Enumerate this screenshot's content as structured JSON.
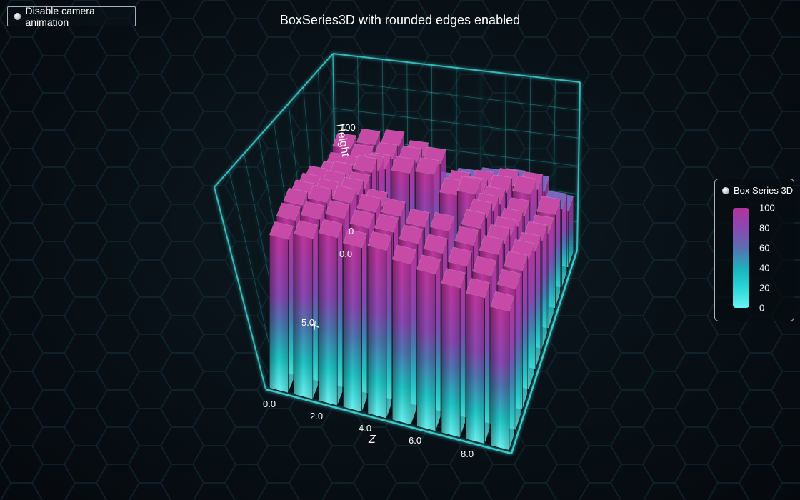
{
  "toggle": {
    "label": "Disable camera animation"
  },
  "title": "BoxSeries3D with rounded edges enabled",
  "legend": {
    "title": "Box Series 3D",
    "ticks": [
      "100",
      "80",
      "60",
      "40",
      "20",
      "0"
    ]
  },
  "axes": {
    "height_label": "Height",
    "height_ticks": [
      "100",
      "0"
    ],
    "x_label": "X",
    "x_ticks": [
      "0.0",
      "5.0"
    ],
    "z_label": "Z",
    "z_ticks": [
      "0.0",
      "2.0",
      "4.0",
      "6.0",
      "8.0"
    ]
  },
  "colors": {
    "low": "#5ef2f2",
    "mid": "#5a6fb0",
    "high": "#b2339a",
    "frame": "#3fd6d6"
  },
  "chart_data": {
    "type": "bar3d",
    "title": "BoxSeries3D with rounded edges enabled",
    "series": [
      {
        "name": "Box Series 3D"
      }
    ],
    "xlabel": "X",
    "ylabel": "Height",
    "zlabel": "Z",
    "ylim": [
      0,
      100
    ],
    "grid": true,
    "legend_position": "right",
    "values": [
      [
        70,
        76,
        78,
        72,
        50,
        55,
        58,
        60,
        58,
        45
      ],
      [
        65,
        74,
        78,
        78,
        80,
        65,
        68,
        72,
        72,
        60
      ],
      [
        68,
        75,
        80,
        80,
        82,
        70,
        74,
        78,
        80,
        68
      ],
      [
        70,
        76,
        88,
        20,
        22,
        20,
        84,
        80,
        75,
        66
      ],
      [
        82,
        88,
        95,
        15,
        10,
        12,
        20,
        85,
        78,
        72
      ],
      [
        85,
        90,
        92,
        18,
        8,
        10,
        18,
        90,
        82,
        75
      ],
      [
        88,
        92,
        96,
        92,
        20,
        16,
        30,
        92,
        86,
        80
      ],
      [
        90,
        95,
        98,
        96,
        97,
        94,
        95,
        90,
        88,
        82
      ],
      [
        88,
        92,
        96,
        94,
        95,
        92,
        90,
        86,
        84,
        80
      ],
      [
        84,
        88,
        92,
        90,
        92,
        88,
        86,
        82,
        80,
        76
      ]
    ]
  }
}
